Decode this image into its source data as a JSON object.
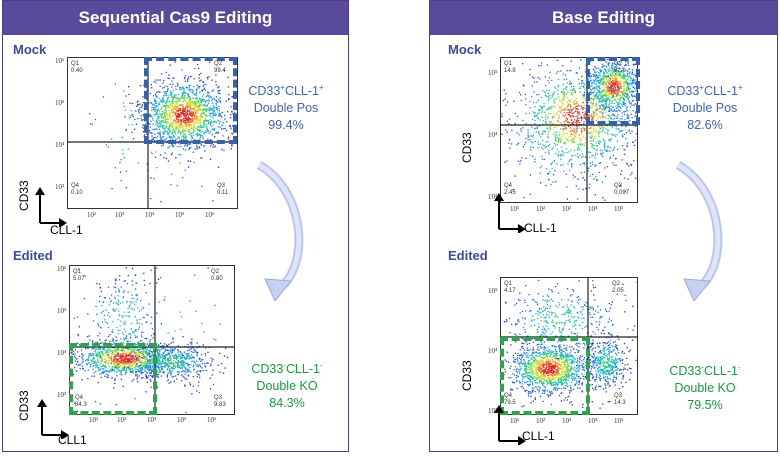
{
  "panels": {
    "left": {
      "title": "Sequential Cas9 Editing",
      "mock_label": "Mock",
      "edited_label": "Edited",
      "mock_plot": {
        "q1": {
          "label": "Q1",
          "value": "0.40"
        },
        "q2": {
          "label": "Q2",
          "value": "99.4"
        },
        "q3": {
          "label": "Q3",
          "value": "0.11"
        },
        "q4": {
          "label": "Q4",
          "value": "0.10"
        },
        "y_ticks": [
          "10⁶",
          "10⁵",
          "10⁴",
          "10³"
        ],
        "x_ticks": [
          "10²",
          "10³",
          "10⁴",
          "10⁵",
          "10⁶"
        ],
        "x_axis": "CLL-1",
        "y_axis": "CD33"
      },
      "edited_plot": {
        "q1": {
          "label": "Q1",
          "value": "5.07"
        },
        "q2": {
          "label": "Q2",
          "value": "0.80"
        },
        "q3": {
          "label": "Q3",
          "value": "9.83"
        },
        "q4": {
          "label": "Q4",
          "value": "84.3"
        },
        "y_ticks": [
          "10⁶",
          "10⁵",
          "10⁴",
          "10³"
        ],
        "x_ticks": [
          "10²",
          "10³",
          "10⁴",
          "10⁵",
          "10⁶"
        ],
        "x_axis": "CLL1",
        "y_axis": "CD33"
      },
      "pos_annotation": {
        "lead": "CD33",
        "sup1": "+",
        "mid": "CLL-1",
        "sup2": "+",
        "line2": "Double Pos",
        "line3": "99.4%"
      },
      "ko_annotation": {
        "lead": "CD33",
        "sup1": "-",
        "mid": "CLL-1",
        "sup2": "-",
        "line2": "Double KO",
        "line3": "84.3%"
      }
    },
    "right": {
      "title": "Base Editing",
      "mock_label": "Mock",
      "edited_label": "Edited",
      "mock_plot": {
        "q1": {
          "label": "Q1",
          "value": "14.8"
        },
        "q2": {
          "label": "Q2",
          "value": "82.6"
        },
        "q3": {
          "label": "Q3",
          "value": "0.097"
        },
        "q4": {
          "label": "Q4",
          "value": "2.45"
        },
        "y_ticks": [
          "10⁵",
          "10⁴",
          "10³"
        ],
        "x_ticks": [
          "10¹",
          "10²",
          "10³",
          "10⁴",
          "10⁵"
        ],
        "x_axis": "CLL-1",
        "y_axis": "CD33"
      },
      "edited_plot": {
        "q1": {
          "label": "Q1",
          "value": "4.17"
        },
        "q2": {
          "label": "Q2",
          "value": "2.05"
        },
        "q3": {
          "label": "Q3",
          "value": "14.3"
        },
        "q4": {
          "label": "Q4",
          "value": "79.5"
        },
        "y_ticks": [
          "10⁵",
          "10⁴",
          "10³"
        ],
        "x_ticks": [
          "10¹",
          "10²",
          "10³",
          "10⁴",
          "10⁵"
        ],
        "x_axis": "CLL-1",
        "y_axis": "CD33"
      },
      "pos_annotation": {
        "lead": "CD33",
        "sup1": "+",
        "mid": "CLL-1",
        "sup2": "+",
        "line2": "Double Pos",
        "line3": "82.6%"
      },
      "ko_annotation": {
        "lead": "CD33",
        "sup1": "-",
        "mid": "CLL-1",
        "sup2": "-",
        "line2": "Double KO",
        "line3": "79.5%"
      }
    }
  },
  "colors": {
    "header_bg": "#5a4a9c",
    "border": "#4b3c8c",
    "section_label": "#3a4c9a",
    "pos_text": "#3e64b4",
    "ko_text": "#1a9a3c",
    "pos_gate": "#3561ad",
    "ko_gate": "#2da44a",
    "curve_arrow": "#b9c6ee"
  }
}
